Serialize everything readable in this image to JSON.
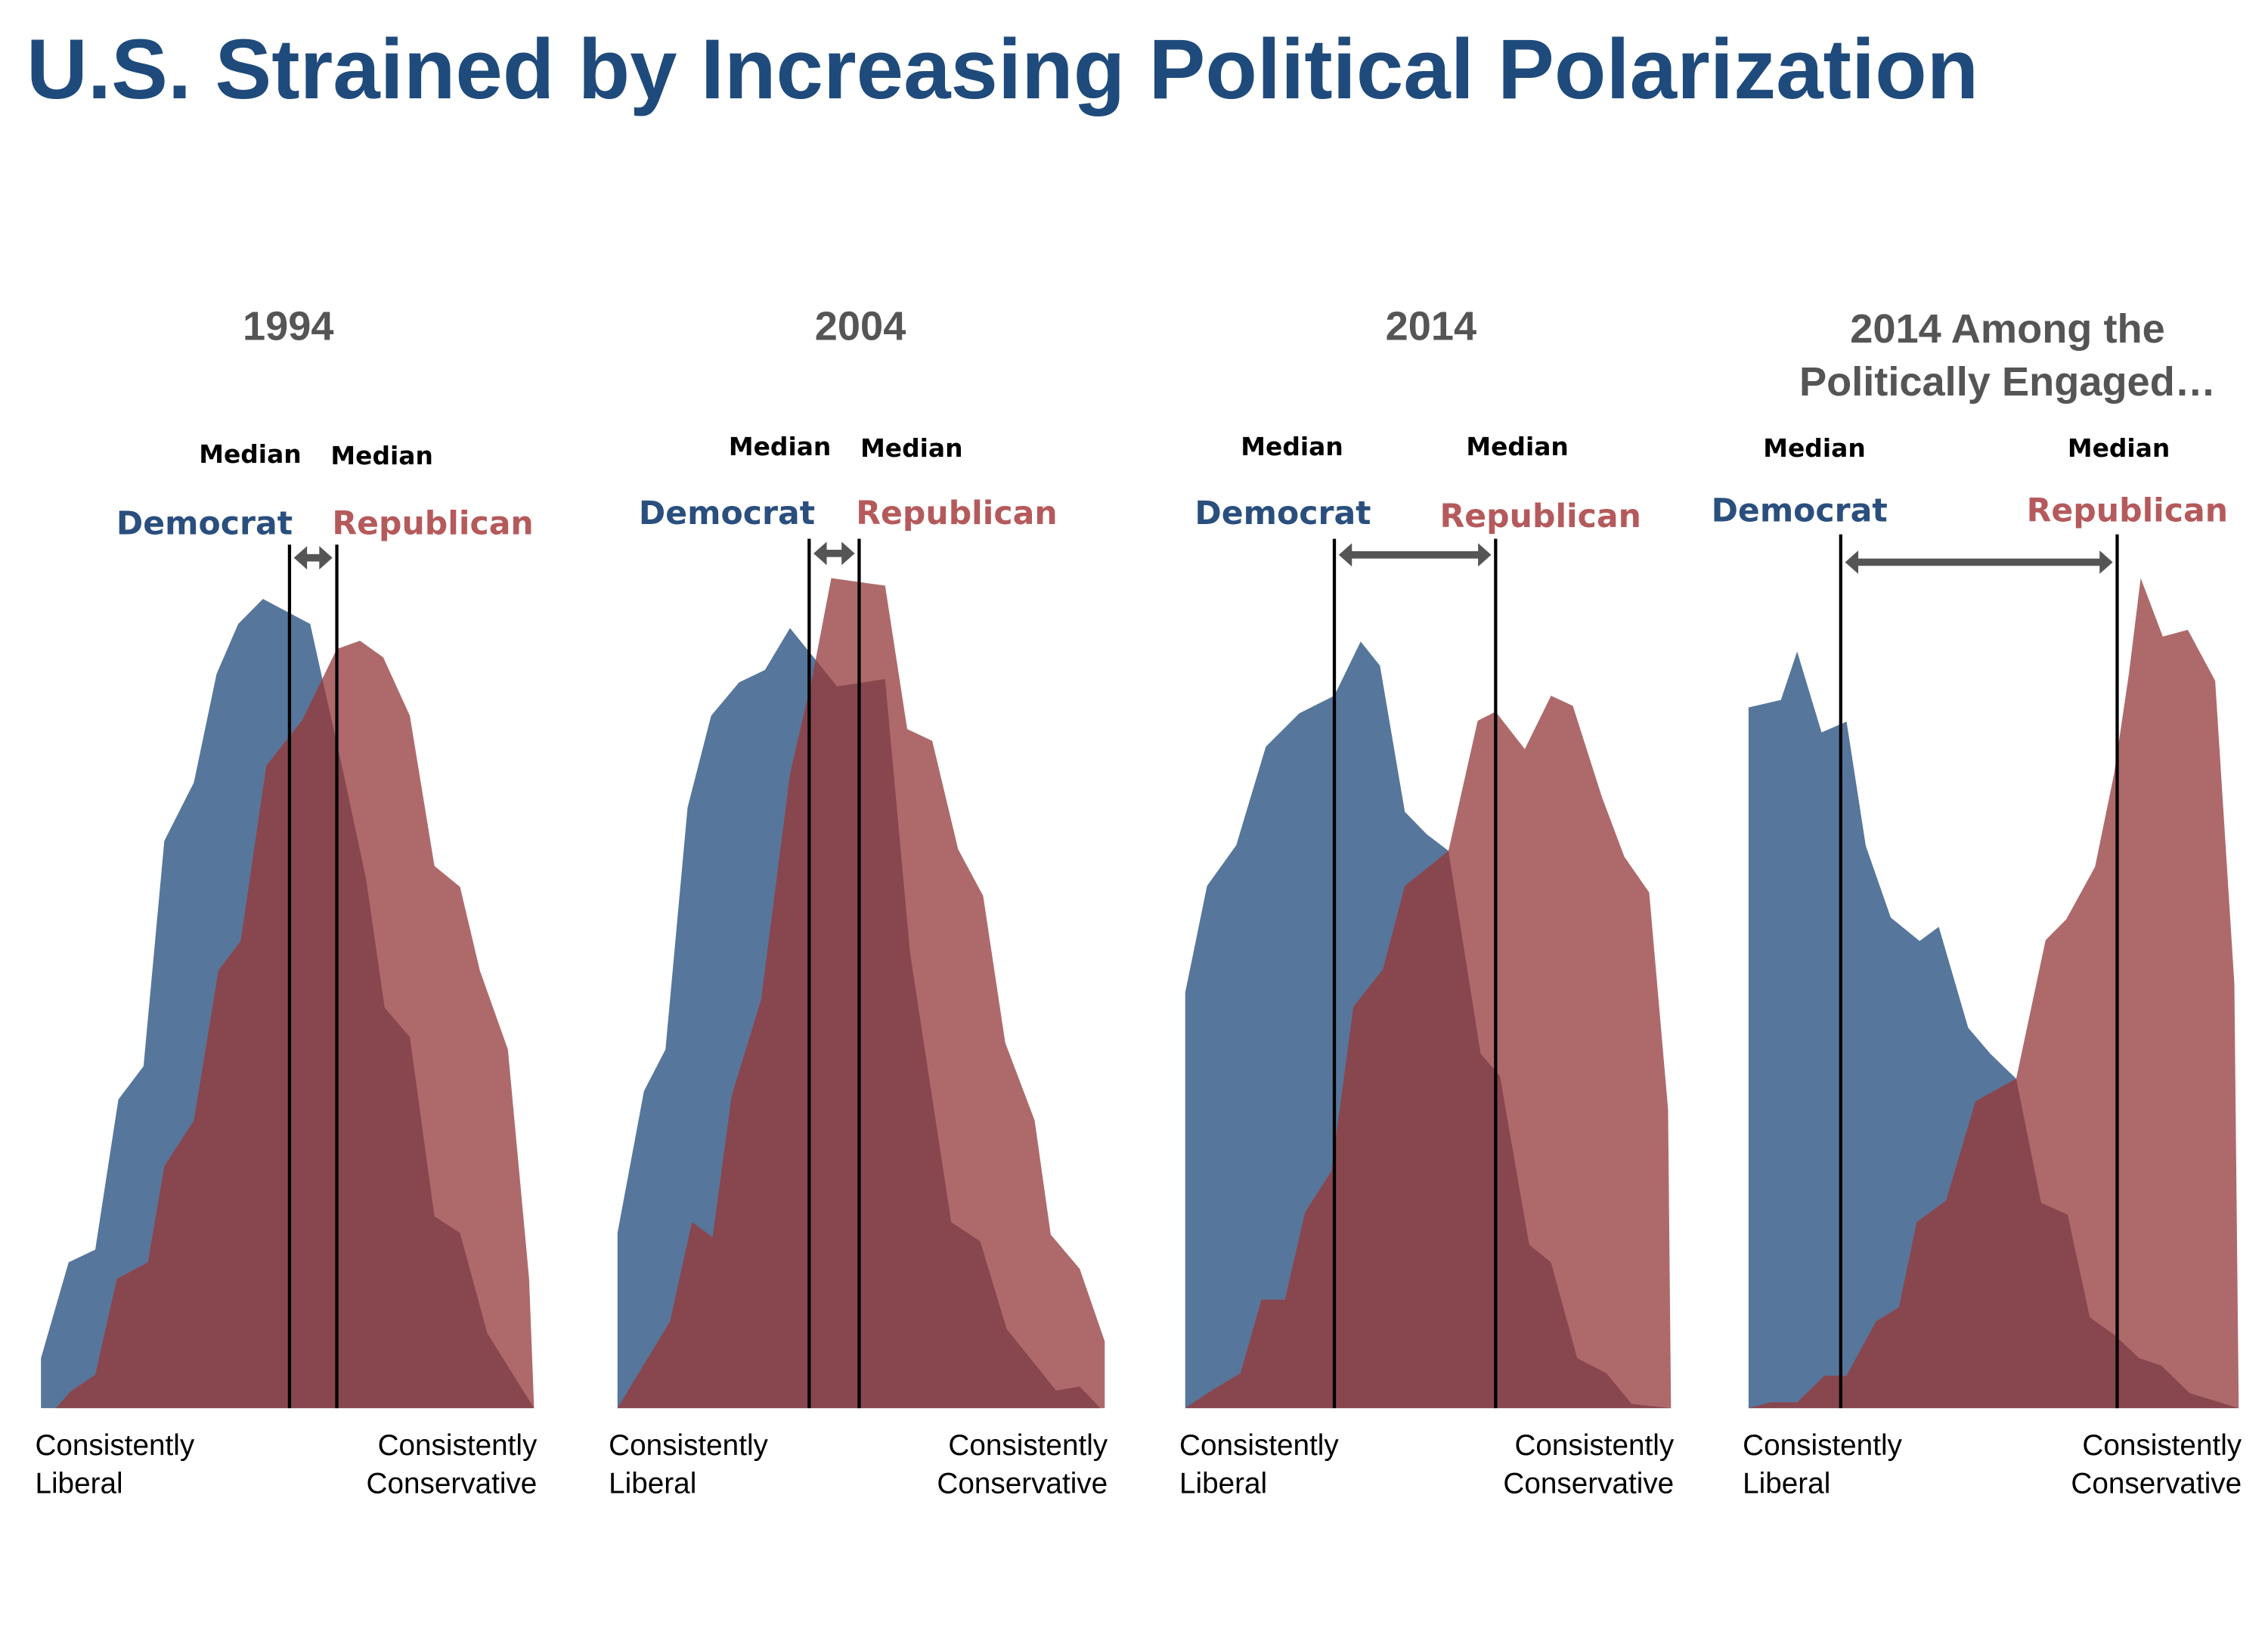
{
  "title": "U.S. Strained by Increasing Political Polarization",
  "colors": {
    "democrat": "#56769c",
    "republican": "#ae6a6b",
    "overlap": "#88464f",
    "arrow": "#555555",
    "title": "#1f4a7c"
  },
  "chart_data": [
    {
      "type": "area",
      "title": [
        "1994"
      ],
      "x_left_label": [
        "Consistently",
        "Liberal"
      ],
      "x_right_label": [
        "Consistently",
        "Conservative"
      ],
      "median_label": "Median",
      "series": [
        {
          "name": "Democrat",
          "median": 0.504,
          "points": [
            [
              0,
              0
            ],
            [
              0,
              0.06
            ],
            [
              0.056,
              0.175
            ],
            [
              0.11,
              0.19
            ],
            [
              0.157,
              0.37
            ],
            [
              0.208,
              0.41
            ],
            [
              0.25,
              0.68
            ],
            [
              0.31,
              0.75
            ],
            [
              0.356,
              0.88
            ],
            [
              0.4,
              0.94
            ],
            [
              0.45,
              0.97
            ],
            [
              0.546,
              0.94
            ],
            [
              0.576,
              0.86
            ],
            [
              0.614,
              0.76
            ],
            [
              0.659,
              0.635
            ],
            [
              0.697,
              0.48
            ],
            [
              0.748,
              0.445
            ],
            [
              0.798,
              0.23
            ],
            [
              0.85,
              0.21
            ],
            [
              0.905,
              0.09
            ],
            [
              1,
              0
            ]
          ]
        },
        {
          "name": "Republican",
          "median": 0.6,
          "points": [
            [
              0.03,
              0
            ],
            [
              0.06,
              0.02
            ],
            [
              0.11,
              0.04
            ],
            [
              0.154,
              0.155
            ],
            [
              0.217,
              0.175
            ],
            [
              0.25,
              0.29
            ],
            [
              0.31,
              0.345
            ],
            [
              0.36,
              0.525
            ],
            [
              0.405,
              0.56
            ],
            [
              0.457,
              0.77
            ],
            [
              0.53,
              0.825
            ],
            [
              0.6,
              0.91
            ],
            [
              0.647,
              0.92
            ],
            [
              0.694,
              0.9
            ],
            [
              0.748,
              0.83
            ],
            [
              0.798,
              0.65
            ],
            [
              0.85,
              0.625
            ],
            [
              0.89,
              0.525
            ],
            [
              0.947,
              0.43
            ],
            [
              0.99,
              0.155
            ],
            [
              1,
              0
            ]
          ]
        }
      ]
    },
    {
      "type": "area",
      "title": [
        "2004"
      ],
      "x_left_label": [
        "Consistently",
        "Liberal"
      ],
      "x_right_label": [
        "Consistently",
        "Conservative"
      ],
      "median_label": "Median",
      "series": [
        {
          "name": "Democrat",
          "median": 0.397,
          "points": [
            [
              0.006,
              0
            ],
            [
              0.006,
              0.21
            ],
            [
              0.06,
              0.38
            ],
            [
              0.104,
              0.43
            ],
            [
              0.149,
              0.72
            ],
            [
              0.197,
              0.83
            ],
            [
              0.254,
              0.87
            ],
            [
              0.307,
              0.885
            ],
            [
              0.358,
              0.935
            ],
            [
              0.454,
              0.865
            ],
            [
              0.552,
              0.874
            ],
            [
              0.603,
              0.545
            ],
            [
              0.687,
              0.223
            ],
            [
              0.746,
              0.2
            ],
            [
              0.8,
              0.095
            ],
            [
              0.901,
              0.021
            ],
            [
              0.949,
              0.026
            ],
            [
              0.991,
              0
            ]
          ]
        },
        {
          "name": "Republican",
          "median": 0.499,
          "points": [
            [
              0.006,
              0
            ],
            [
              0.113,
              0.104
            ],
            [
              0.158,
              0.223
            ],
            [
              0.2,
              0.205
            ],
            [
              0.239,
              0.375
            ],
            [
              0.299,
              0.49
            ],
            [
              0.358,
              0.76
            ],
            [
              0.403,
              0.875
            ],
            [
              0.442,
              0.995
            ],
            [
              0.552,
              0.986
            ],
            [
              0.597,
              0.814
            ],
            [
              0.648,
              0.8
            ],
            [
              0.701,
              0.67
            ],
            [
              0.752,
              0.614
            ],
            [
              0.797,
              0.438
            ],
            [
              0.857,
              0.345
            ],
            [
              0.89,
              0.208
            ],
            [
              0.949,
              0.167
            ],
            [
              1,
              0.08
            ],
            [
              1,
              0
            ]
          ]
        }
      ]
    },
    {
      "type": "area",
      "title": [
        "2014"
      ],
      "x_left_label": [
        "Consistently",
        "Liberal"
      ],
      "x_right_label": [
        "Consistently",
        "Conservative"
      ],
      "median_label": "Median",
      "series": [
        {
          "name": "Democrat",
          "median": 0.307,
          "points": [
            [
              0,
              0
            ],
            [
              0,
              0.498
            ],
            [
              0.045,
              0.626
            ],
            [
              0.105,
              0.675
            ],
            [
              0.166,
              0.793
            ],
            [
              0.235,
              0.833
            ],
            [
              0.307,
              0.854
            ],
            [
              0.361,
              0.919
            ],
            [
              0.401,
              0.89
            ],
            [
              0.452,
              0.715
            ],
            [
              0.497,
              0.688
            ],
            [
              0.542,
              0.668
            ],
            [
              0.608,
              0.425
            ],
            [
              0.648,
              0.398
            ],
            [
              0.708,
              0.196
            ],
            [
              0.753,
              0.175
            ],
            [
              0.807,
              0.06
            ],
            [
              0.867,
              0.042
            ],
            [
              0.919,
              0.005
            ],
            [
              1,
              0
            ]
          ]
        },
        {
          "name": "Republican",
          "median": 0.639,
          "points": [
            [
              0,
              0
            ],
            [
              0.054,
              0.021
            ],
            [
              0.114,
              0.042
            ],
            [
              0.157,
              0.13
            ],
            [
              0.205,
              0.13
            ],
            [
              0.247,
              0.235
            ],
            [
              0.301,
              0.284
            ],
            [
              0.346,
              0.481
            ],
            [
              0.407,
              0.526
            ],
            [
              0.452,
              0.626
            ],
            [
              0.542,
              0.668
            ],
            [
              0.602,
              0.824
            ],
            [
              0.639,
              0.835
            ],
            [
              0.699,
              0.79
            ],
            [
              0.753,
              0.854
            ],
            [
              0.798,
              0.842
            ],
            [
              0.858,
              0.732
            ],
            [
              0.904,
              0.661
            ],
            [
              0.955,
              0.618
            ],
            [
              0.994,
              0.358
            ],
            [
              1,
              0
            ]
          ]
        }
      ]
    },
    {
      "type": "area",
      "title": [
        "2014 Among the",
        "Politically Engaged…"
      ],
      "x_left_label": [
        "Consistently",
        "Liberal"
      ],
      "x_right_label": [
        "Consistently",
        "Conservative"
      ],
      "median_label": "Median",
      "series": [
        {
          "name": "Democrat",
          "median": 0.188,
          "points": [
            [
              0,
              0
            ],
            [
              0,
              0.84
            ],
            [
              0.066,
              0.849
            ],
            [
              0.099,
              0.907
            ],
            [
              0.149,
              0.81
            ],
            [
              0.2,
              0.823
            ],
            [
              0.239,
              0.674
            ],
            [
              0.29,
              0.588
            ],
            [
              0.349,
              0.56
            ],
            [
              0.388,
              0.577
            ],
            [
              0.448,
              0.456
            ],
            [
              0.493,
              0.425
            ],
            [
              0.546,
              0.395
            ],
            [
              0.597,
              0.246
            ],
            [
              0.651,
              0.232
            ],
            [
              0.696,
              0.109
            ],
            [
              0.746,
              0.088
            ],
            [
              0.797,
              0.06
            ],
            [
              0.842,
              0.051
            ],
            [
              0.9,
              0.018
            ],
            [
              1,
              0
            ]
          ]
        },
        {
          "name": "Republican",
          "median": 0.752,
          "points": [
            [
              0,
              0
            ],
            [
              0.045,
              0.007
            ],
            [
              0.099,
              0.007
            ],
            [
              0.155,
              0.039
            ],
            [
              0.2,
              0.039
            ],
            [
              0.26,
              0.104
            ],
            [
              0.307,
              0.121
            ],
            [
              0.343,
              0.223
            ],
            [
              0.403,
              0.249
            ],
            [
              0.463,
              0.368
            ],
            [
              0.546,
              0.395
            ],
            [
              0.606,
              0.561
            ],
            [
              0.648,
              0.586
            ],
            [
              0.707,
              0.649
            ],
            [
              0.746,
              0.761
            ],
            [
              0.776,
              0.881
            ],
            [
              0.8,
              0.995
            ],
            [
              0.845,
              0.925
            ],
            [
              0.896,
              0.933
            ],
            [
              0.952,
              0.872
            ],
            [
              0.991,
              0.509
            ],
            [
              1,
              0
            ]
          ]
        }
      ]
    }
  ]
}
